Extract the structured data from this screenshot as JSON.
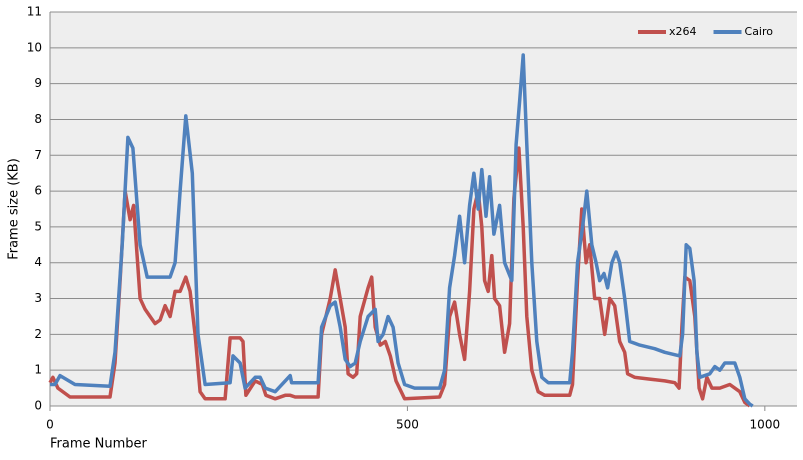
{
  "chart_data": {
    "type": "line",
    "x_label": "Frame Number",
    "y_label": "Frame size (KB)",
    "xlim": [
      0,
      1045
    ],
    "xticks": [
      0,
      500,
      1000
    ],
    "ylim": [
      0,
      11
    ],
    "yticks": [
      0,
      1,
      2,
      3,
      4,
      5,
      6,
      7,
      8,
      9,
      10,
      11
    ],
    "grid": true,
    "legend": "top-right",
    "series": [
      {
        "name": "x264",
        "color": "#c0504d",
        "x": [
          0,
          4,
          11,
          28,
          84,
          91,
          98,
          105,
          112,
          117,
          126,
          133,
          140,
          147,
          154,
          161,
          168,
          175,
          182,
          190,
          196,
          203,
          210,
          217,
          245,
          252,
          266,
          270,
          274,
          287,
          297,
          302,
          315,
          329,
          336,
          343,
          375,
          380,
          392,
          399,
          406,
          413,
          417,
          424,
          429,
          434,
          445,
          450,
          455,
          462,
          469,
          476,
          484,
          496,
          545,
          552,
          559,
          566,
          573,
          580,
          587,
          593,
          599,
          604,
          608,
          613,
          618,
          622,
          629,
          636,
          643,
          649,
          656,
          662,
          667,
          674,
          683,
          692,
          727,
          731,
          738,
          744,
          750,
          755,
          762,
          769,
          776,
          783,
          790,
          797,
          804,
          808,
          818,
          839,
          860,
          874,
          880,
          884,
          888,
          895,
          902,
          908,
          913,
          919,
          926,
          937,
          951,
          965,
          972,
          979
        ],
        "values": [
          0.65,
          0.8,
          0.5,
          0.25,
          0.25,
          1.2,
          3.5,
          6.0,
          5.2,
          5.6,
          3.0,
          2.7,
          2.5,
          2.3,
          2.4,
          2.8,
          2.5,
          3.2,
          3.2,
          3.6,
          3.2,
          2.0,
          0.4,
          0.2,
          0.2,
          1.9,
          1.9,
          1.8,
          0.3,
          0.7,
          0.6,
          0.3,
          0.2,
          0.3,
          0.3,
          0.25,
          0.25,
          2.0,
          3.0,
          3.8,
          3.0,
          2.2,
          0.9,
          0.8,
          0.9,
          2.5,
          3.3,
          3.6,
          2.2,
          1.7,
          1.8,
          1.4,
          0.7,
          0.2,
          0.25,
          0.6,
          2.5,
          2.9,
          2.0,
          1.3,
          3.2,
          5.5,
          6.0,
          5.0,
          3.5,
          3.2,
          4.2,
          3.0,
          2.8,
          1.5,
          2.3,
          5.8,
          7.2,
          5.0,
          2.5,
          1.0,
          0.4,
          0.3,
          0.3,
          0.6,
          3.5,
          5.5,
          4.0,
          4.5,
          3.0,
          3.0,
          2.0,
          3.0,
          2.8,
          1.8,
          1.5,
          0.9,
          0.8,
          0.75,
          0.7,
          0.65,
          0.5,
          2.2,
          3.6,
          3.5,
          2.5,
          0.5,
          0.2,
          0.8,
          0.5,
          0.5,
          0.6,
          0.4,
          0.1,
          0
        ]
      },
      {
        "name": "Cairo",
        "color": "#4f81bd",
        "x": [
          0,
          7,
          14,
          35,
          84,
          91,
          101,
          109,
          116,
          126,
          136,
          168,
          175,
          182,
          190,
          199,
          207,
          217,
          252,
          256,
          266,
          273,
          287,
          294,
          301,
          315,
          336,
          338,
          375,
          380,
          392,
          399,
          406,
          413,
          420,
          427,
          434,
          445,
          455,
          459,
          466,
          473,
          480,
          487,
          496,
          510,
          545,
          552,
          559,
          566,
          573,
          580,
          587,
          593,
          599,
          604,
          610,
          615,
          621,
          629,
          636,
          646,
          652,
          657,
          662,
          667,
          674,
          681,
          688,
          697,
          727,
          731,
          738,
          745,
          751,
          758,
          764,
          769,
          775,
          780,
          786,
          792,
          797,
          804,
          811,
          825,
          846,
          860,
          881,
          885,
          890,
          895,
          901,
          905,
          909,
          923,
          930,
          937,
          944,
          958,
          965,
          972,
          979,
          983
        ],
        "values": [
          0.6,
          0.6,
          0.85,
          0.6,
          0.55,
          1.5,
          4.5,
          7.5,
          7.2,
          4.5,
          3.6,
          3.6,
          4.0,
          6.0,
          8.1,
          6.5,
          2.0,
          0.6,
          0.65,
          1.4,
          1.2,
          0.5,
          0.8,
          0.8,
          0.5,
          0.4,
          0.85,
          0.65,
          0.65,
          2.2,
          2.8,
          2.9,
          2.2,
          1.3,
          1.1,
          1.2,
          1.8,
          2.5,
          2.7,
          1.8,
          2.0,
          2.5,
          2.2,
          1.2,
          0.6,
          0.5,
          0.5,
          1.0,
          3.3,
          4.2,
          5.3,
          4.0,
          5.6,
          6.5,
          5.5,
          6.6,
          5.3,
          6.4,
          4.8,
          5.6,
          4.0,
          3.5,
          7.3,
          8.5,
          9.8,
          7.3,
          4.0,
          1.8,
          0.8,
          0.65,
          0.65,
          1.5,
          4.0,
          5.0,
          6.0,
          4.5,
          4.0,
          3.5,
          3.7,
          3.3,
          4.0,
          4.3,
          4.0,
          3.0,
          1.8,
          1.7,
          1.6,
          1.5,
          1.4,
          2.0,
          4.5,
          4.4,
          3.5,
          1.5,
          0.8,
          0.9,
          1.1,
          1.0,
          1.2,
          1.2,
          0.8,
          0.2,
          0.05,
          0
        ]
      }
    ]
  }
}
